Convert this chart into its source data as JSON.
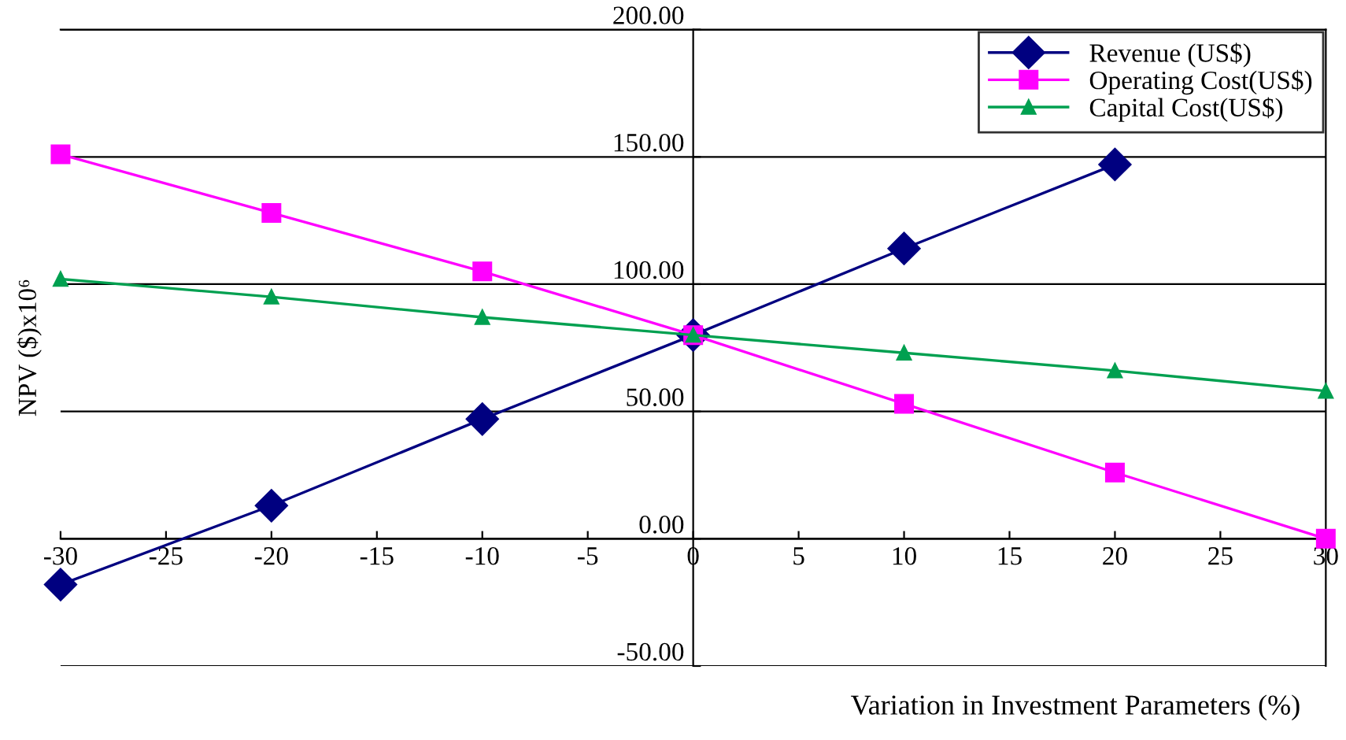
{
  "chart_data": {
    "type": "line",
    "xlabel": "Variation in Investment Parameters (%)",
    "ylabel": "NPV ($)x10⁶",
    "x": [
      -30,
      -20,
      -10,
      0,
      10,
      20,
      30
    ],
    "series": [
      {
        "name": "Revenue (US$)",
        "color": "#000080",
        "marker": "diamond",
        "values": [
          -18,
          13,
          47,
          80,
          114,
          147,
          null
        ]
      },
      {
        "name": "Operating Cost(US$)",
        "color": "#ff00ff",
        "marker": "square",
        "values": [
          151,
          128,
          105,
          80,
          53,
          26,
          0
        ]
      },
      {
        "name": "Capital Cost(US$)",
        "color": "#00a050",
        "marker": "triangle",
        "values": [
          102,
          95,
          87,
          80,
          73,
          66,
          58
        ]
      }
    ],
    "xlim": [
      -30,
      30
    ],
    "xticks": [
      -30,
      -25,
      -20,
      -15,
      -10,
      -5,
      0,
      5,
      10,
      15,
      20,
      25,
      30
    ],
    "ylim": [
      -50,
      200
    ],
    "yticks": [
      {
        "value": -50,
        "label": "-50.00"
      },
      {
        "value": 0,
        "label": "0.00"
      },
      {
        "value": 50,
        "label": "50.00"
      },
      {
        "value": 100,
        "label": "100.00"
      },
      {
        "value": 150,
        "label": "150.00"
      },
      {
        "value": 200,
        "label": "200.00"
      }
    ],
    "grid": "y",
    "legend": "top right",
    "line_style": "solid"
  }
}
